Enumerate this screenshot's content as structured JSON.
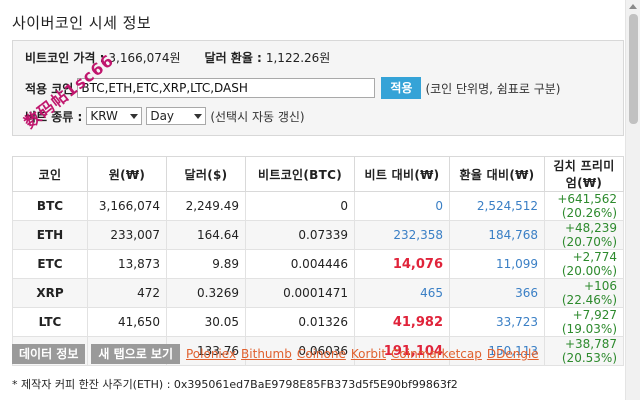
{
  "title": "사이버코인 시세 정보",
  "watermark": "数码帖1sc66",
  "form": {
    "btc_price_label": "비트코인 가격 :",
    "btc_price_value": "3,166,074원",
    "fx_label": "달러 환율 :",
    "fx_value": "1,122.26원",
    "coins_label": "적용 코인",
    "coins_value": "BTC,ETH,ETC,XRP,LTC,DASH",
    "apply_label": "적용",
    "coins_hint": "(코인 단위명, 쉼표로 구분)",
    "type_label": "비트 종류 :",
    "currency_selected": "KRW",
    "period_selected": "Day",
    "type_hint": "(선택시 자동 갱신)"
  },
  "table": {
    "headers": [
      "코인",
      "원(₩)",
      "달러($)",
      "비트코인(BTC)",
      "비트 대비(₩)",
      "환율 대비(₩)",
      "김치 프리미엄(₩)"
    ],
    "rows": [
      {
        "coin": "BTC",
        "krw": "3,166,074",
        "usd": "2,249.49",
        "btc": "0",
        "vs_bit": "0",
        "vs_fx": "2,524,512",
        "kimchi": "+641,562 (20.26%)",
        "vs_bit_style": "blue"
      },
      {
        "coin": "ETH",
        "krw": "233,007",
        "usd": "164.64",
        "btc": "0.07339",
        "vs_bit": "232,358",
        "vs_fx": "184,768",
        "kimchi": "+48,239 (20.70%)",
        "vs_bit_style": "blue"
      },
      {
        "coin": "ETC",
        "krw": "13,873",
        "usd": "9.89",
        "btc": "0.004446",
        "vs_bit": "14,076",
        "vs_fx": "11,099",
        "kimchi": "+2,774 (20.00%)",
        "vs_bit_style": "red"
      },
      {
        "coin": "XRP",
        "krw": "472",
        "usd": "0.3269",
        "btc": "0.0001471",
        "vs_bit": "465",
        "vs_fx": "366",
        "kimchi": "+106 (22.46%)",
        "vs_bit_style": "blue"
      },
      {
        "coin": "LTC",
        "krw": "41,650",
        "usd": "30.05",
        "btc": "0.01326",
        "vs_bit": "41,982",
        "vs_fx": "33,723",
        "kimchi": "+7,927 (19.03%)",
        "vs_bit_style": "red"
      },
      {
        "coin": "DASH",
        "krw": "188,900",
        "usd": "133.76",
        "btc": "0.06036",
        "vs_bit": "191,104",
        "vs_fx": "150,113",
        "kimchi": "+38,787 (20.53%)",
        "vs_bit_style": "red"
      }
    ]
  },
  "actions": {
    "data_info": "데이터 정보",
    "new_tab": "새 탭으로 보기",
    "links": [
      "Poloniex",
      "Bithumb",
      "Coinone",
      "Korbit",
      "Coinmarketcap",
      "DDengle"
    ]
  },
  "footer": "* 제작자 커피 한잔 사주기(ETH) : 0x395061ed7BaE9798E85FB373d5f5E90bf99863f2",
  "colors": {
    "accent": "#35a3d7",
    "positive": "#2d8a2d",
    "highlight": "#e0233a",
    "muted_blue": "#3a7fc5",
    "link": "#e0602e",
    "button_gray": "#9a9a9a",
    "watermark": "#c0166d"
  }
}
